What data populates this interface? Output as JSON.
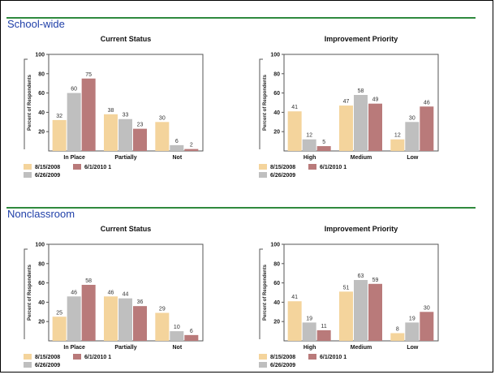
{
  "sections": [
    {
      "title": "School-wide"
    },
    {
      "title": "Nonclassroom"
    }
  ],
  "colors": {
    "accent_rule": "#2f8a3e",
    "section_title": "#1f3fa8",
    "series": [
      "#f4d49c",
      "#bfbfbf",
      "#b97a7a"
    ]
  },
  "chart_data": [
    {
      "type": "bar",
      "title": "Current Status",
      "ylabel": "Percent of Respondents",
      "ylim": [
        0,
        100
      ],
      "yticks": [
        "20",
        "40",
        "60",
        "80",
        "100"
      ],
      "categories": [
        "In Place",
        "Partially",
        "Not"
      ],
      "series": [
        {
          "name": "8/15/2008",
          "values": [
            32,
            38,
            30
          ]
        },
        {
          "name": "6/26/2009",
          "values": [
            60,
            33,
            6
          ]
        },
        {
          "name": "6/1/2010 1",
          "values": [
            75,
            23,
            2
          ]
        }
      ],
      "legend": "bottom-left"
    },
    {
      "type": "bar",
      "title": "Improvement Priority",
      "ylabel": "Percent of Respondents",
      "ylim": [
        0,
        100
      ],
      "yticks": [
        "20",
        "40",
        "60",
        "80",
        "100"
      ],
      "categories": [
        "High",
        "Medium",
        "Low"
      ],
      "series": [
        {
          "name": "8/15/2008",
          "values": [
            41,
            47,
            12
          ]
        },
        {
          "name": "6/26/2009",
          "values": [
            12,
            58,
            30
          ]
        },
        {
          "name": "6/1/2010 1",
          "values": [
            5,
            49,
            46
          ]
        }
      ],
      "legend": "bottom-left"
    },
    {
      "type": "bar",
      "title": "Current Status",
      "ylabel": "Percent of Respondents",
      "ylim": [
        0,
        100
      ],
      "yticks": [
        "20",
        "40",
        "60",
        "80",
        "100"
      ],
      "categories": [
        "In Place",
        "Partially",
        "Not"
      ],
      "series": [
        {
          "name": "8/15/2008",
          "values": [
            25,
            46,
            29
          ]
        },
        {
          "name": "6/26/2009",
          "values": [
            46,
            44,
            10
          ]
        },
        {
          "name": "6/1/2010 1",
          "values": [
            58,
            36,
            6
          ]
        }
      ],
      "legend": "bottom-left"
    },
    {
      "type": "bar",
      "title": "Improvement Priority",
      "ylabel": "Percent of Respondents",
      "ylim": [
        0,
        100
      ],
      "yticks": [
        "20",
        "40",
        "60",
        "80",
        "100"
      ],
      "categories": [
        "High",
        "Medium",
        "Low"
      ],
      "series": [
        {
          "name": "8/15/2008",
          "values": [
            41,
            51,
            8
          ]
        },
        {
          "name": "6/26/2009",
          "values": [
            19,
            63,
            19
          ]
        },
        {
          "name": "6/1/2010 1",
          "values": [
            11,
            59,
            30
          ]
        }
      ],
      "legend": "bottom-left"
    }
  ]
}
